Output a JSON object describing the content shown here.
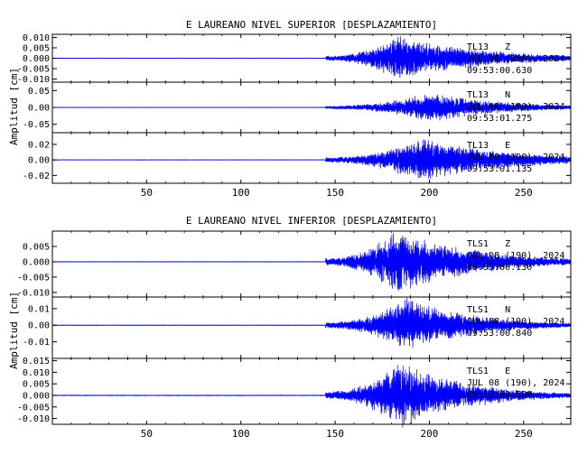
{
  "colors": {
    "trace": "#0000ff",
    "axis": "#000000",
    "background": "#ffffff"
  },
  "chart_data": [
    {
      "type": "line",
      "title": "E LAUREANO NIVEL SUPERIOR [DESPLAZAMIENTO]",
      "ylabel": "Amplitud [cm]",
      "xlabel": "",
      "xlim": [
        0,
        275
      ],
      "xticks": [
        50,
        100,
        150,
        200,
        250
      ],
      "grid": false,
      "panels": [
        {
          "station": "TL13",
          "component": "Z",
          "date_line": "JUL 08 (190), 2024",
          "time_line": "09:53:00.630",
          "ylim": [
            -0.0115,
            0.0115
          ],
          "yticks": [
            "0.010",
            "0.005",
            "0.000",
            "-0.005",
            "-0.010"
          ],
          "yticks_values": [
            0.01,
            0.005,
            0,
            -0.005,
            -0.01
          ],
          "signal": {
            "onset": 145,
            "peak_time": 183,
            "peak_amp": 0.011,
            "pre_noise": 5e-05,
            "decay": 45
          }
        },
        {
          "station": "TL13",
          "component": "N",
          "date_line": "JUL 08 (190), 2024",
          "time_line": "09:53:01.275",
          "ylim": [
            -0.075,
            0.075
          ],
          "yticks": [
            "0.05",
            "0.00",
            "-0.05"
          ],
          "yticks_values": [
            0.05,
            0,
            -0.05
          ],
          "signal": {
            "onset": 145,
            "peak_time": 200,
            "peak_amp": 0.045,
            "pre_noise": 0.0003,
            "decay": 40
          }
        },
        {
          "station": "TL13",
          "component": "E",
          "date_line": "JUL 08 (190), 2024",
          "time_line": "09:53:01.135",
          "ylim": [
            -0.03,
            0.035
          ],
          "yticks": [
            "0.02",
            "0.00",
            "-0.02"
          ],
          "yticks_values": [
            0.02,
            0,
            -0.02
          ],
          "signal": {
            "onset": 145,
            "peak_time": 195,
            "peak_amp": 0.03,
            "pre_noise": 0.0002,
            "decay": 45
          }
        }
      ]
    },
    {
      "type": "line",
      "title": "E LAUREANO NIVEL INFERIOR [DESPLAZAMIENTO]",
      "ylabel": "Amplitud [cm]",
      "xlabel": "",
      "xlim": [
        0,
        275
      ],
      "xticks": [
        50,
        100,
        150,
        200,
        250
      ],
      "grid": false,
      "panels": [
        {
          "station": "TLS1",
          "component": "Z",
          "date_line": "JUL 08 (190), 2024",
          "time_line": "09:53:00.130",
          "ylim": [
            -0.0115,
            0.01
          ],
          "yticks": [
            "0.005",
            "0.000",
            "-0.005",
            "-0.010"
          ],
          "yticks_values": [
            0.005,
            0,
            -0.005,
            -0.01
          ],
          "signal": {
            "onset": 145,
            "peak_time": 183,
            "peak_amp": 0.011,
            "pre_noise": 5e-05,
            "decay": 40
          }
        },
        {
          "station": "TLS1",
          "component": "N",
          "date_line": "JUL 08 (190), 2024",
          "time_line": "09:53:00.840",
          "ylim": [
            -0.02,
            0.017
          ],
          "yticks": [
            "0.01",
            "0.00",
            "-0.01"
          ],
          "yticks_values": [
            0.01,
            0,
            -0.01
          ],
          "signal": {
            "onset": 145,
            "peak_time": 188,
            "peak_amp": 0.017,
            "pre_noise": 0.0001,
            "decay": 35
          }
        },
        {
          "station": "TLS1",
          "component": "E",
          "date_line": "JUL 08 (190), 2024",
          "time_line": "09:53:01.530",
          "ylim": [
            -0.0125,
            0.016
          ],
          "yticks": [
            "0.015",
            "0.010",
            "0.005",
            "0.000",
            "-0.005",
            "-0.010"
          ],
          "yticks_values": [
            0.015,
            0.01,
            0.005,
            0,
            -0.005,
            -0.01
          ],
          "signal": {
            "onset": 145,
            "peak_time": 185,
            "peak_amp": 0.015,
            "pre_noise": 0.0001,
            "decay": 35
          }
        }
      ]
    }
  ]
}
